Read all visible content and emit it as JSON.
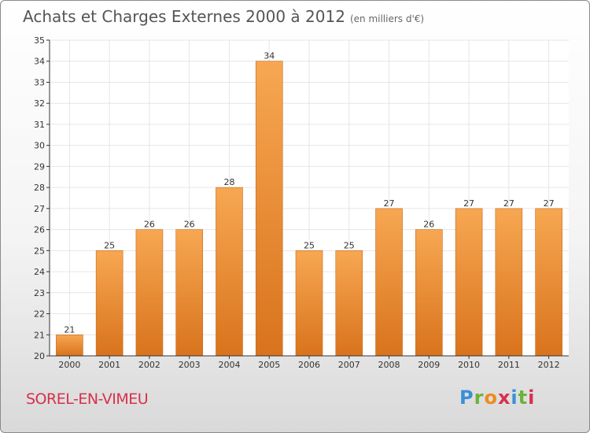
{
  "header": {
    "title": "Achats et Charges Externes 2000 à 2012",
    "subtitle": "(en milliers d'€)"
  },
  "footer": {
    "town": "SOREL-EN-VIMEU",
    "logo_letters": [
      "P",
      "r",
      "o",
      "x",
      "i",
      "t",
      "i"
    ]
  },
  "colors": {
    "bar_light": "#f7a752",
    "bar_dark": "#d9731d",
    "grid": "#e6e6e6",
    "axis": "#333333",
    "town": "#d6314b"
  },
  "chart_data": {
    "type": "bar",
    "title": "Achats et Charges Externes 2000 à 2012",
    "subtitle": "(en milliers d'€)",
    "xlabel": "",
    "ylabel": "",
    "categories": [
      "2000",
      "2001",
      "2002",
      "2003",
      "2004",
      "2005",
      "2006",
      "2007",
      "2008",
      "2009",
      "2010",
      "2011",
      "2012"
    ],
    "values": [
      21,
      25,
      26,
      26,
      28,
      34,
      25,
      25,
      27,
      26,
      27,
      27,
      27
    ],
    "ylim": [
      20,
      35
    ],
    "yticks": [
      20,
      21,
      22,
      23,
      24,
      25,
      26,
      27,
      28,
      29,
      30,
      31,
      32,
      33,
      34,
      35
    ],
    "grid": true,
    "data_labels": true,
    "legend": "none"
  }
}
